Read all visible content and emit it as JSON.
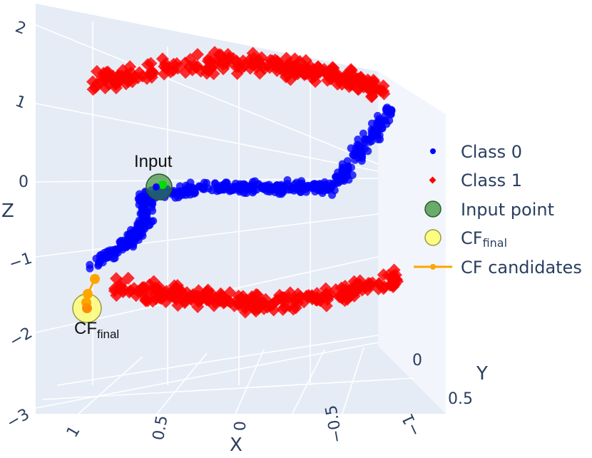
{
  "chart_data": {
    "type": "scatter",
    "projection": "3d",
    "title": "",
    "axes": {
      "x": {
        "label": "X",
        "ticks": [
          "1",
          "0.5",
          "0",
          "−0.5",
          "−1"
        ],
        "range": [
          1.1,
          -1.1
        ]
      },
      "y": {
        "label": "Y",
        "ticks": [
          "0",
          "0.5"
        ],
        "range": [
          -0.1,
          0.6
        ]
      },
      "z": {
        "label": "Z",
        "ticks": [
          "2",
          "1",
          "0",
          "−1",
          "−2",
          "−3"
        ],
        "range": [
          -3,
          2
        ]
      }
    },
    "grid": true,
    "legend_position": "right",
    "colors": {
      "class0": "#0000ff",
      "class1": "#ff0000",
      "input": "#2e8b2e",
      "cf_final": "#ffff66",
      "cf_candidates": "#ffa500",
      "background": "#e5ecf6",
      "grid": "#ffffff",
      "text": "#2a3f5f"
    },
    "series": [
      {
        "name": "Class 0",
        "marker": "circle",
        "count": 500,
        "shape": "S-curve: upper arc from x=1.0 to x=-1.0 near z=-0.2 curving up to z=1.2 at the far right, lower arc from x=0.9 curving down to z=-1.0 on the left"
      },
      {
        "name": "Class 1",
        "marker": "diamond",
        "count": 500,
        "shape": "two bands: upper band spanning x=1 to -1 around z=1.3 to 1.8, lower band spanning x=0.8 to -1.1 around z=-1.0 to -1.6"
      },
      {
        "name": "Input point",
        "marker": "circle",
        "points": [
          {
            "x": 0.55,
            "y": 0,
            "z": -0.05
          }
        ]
      },
      {
        "name": "CF_final",
        "marker": "circle",
        "points": [
          {
            "x": 1.1,
            "y": 0,
            "z": -1.75
          }
        ]
      },
      {
        "name": "CF candidates",
        "marker": "line+circle",
        "points": [
          {
            "x": 1.05,
            "y": 0,
            "z": -1.35
          },
          {
            "x": 1.08,
            "y": 0,
            "z": -1.55
          },
          {
            "x": 1.1,
            "y": 0,
            "z": -1.7
          },
          {
            "x": 1.1,
            "y": 0,
            "z": -1.75
          }
        ]
      }
    ],
    "annotations": [
      {
        "text": "Input",
        "target": "Input point"
      },
      {
        "text": "CF",
        "subscript": "final",
        "target": "CF_final"
      }
    ]
  },
  "legend": {
    "items": [
      {
        "key": "class0",
        "label": "Class 0"
      },
      {
        "key": "class1",
        "label": "Class 1"
      },
      {
        "key": "input",
        "label": "Input point"
      },
      {
        "key": "cf_final",
        "label": "CF",
        "sub": "final"
      },
      {
        "key": "cf_candidates",
        "label": "CF candidates"
      }
    ]
  }
}
